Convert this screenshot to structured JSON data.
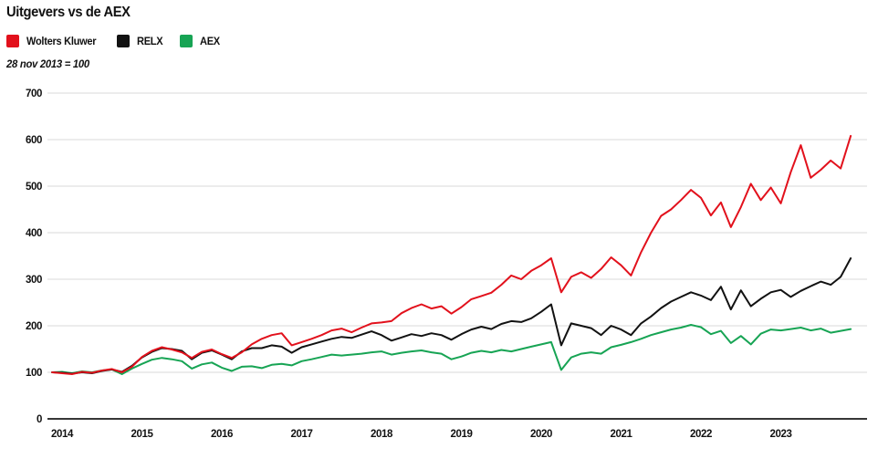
{
  "page": {
    "title": "Uitgevers vs de AEX"
  },
  "chart_data": {
    "type": "line",
    "title": "Uitgevers vs de AEX",
    "subtitle": "28 nov 2013 = 100",
    "x_axis": "year",
    "y_axis": "index (28 nov 2013 = 100)",
    "ylim": [
      0,
      700
    ],
    "xlim": [
      2013.875,
      2024.15
    ],
    "y_ticks": [
      0,
      100,
      200,
      300,
      400,
      500,
      600,
      700
    ],
    "x_tick_labels": [
      "2014",
      "2015",
      "2016",
      "2017",
      "2018",
      "2019",
      "2020",
      "2021",
      "2022",
      "2023"
    ],
    "grid": "horizontal",
    "legend_position": "top-left",
    "colors": {
      "wolters_kluwer": "#e2111c",
      "relx": "#121212",
      "aex": "#17a454",
      "gridline": "#d9d9d9",
      "axis": "#1a1a1a"
    },
    "x": [
      2013.875,
      2014.0,
      2014.125,
      2014.25,
      2014.375,
      2014.5,
      2014.625,
      2014.75,
      2014.875,
      2015.0,
      2015.125,
      2015.25,
      2015.375,
      2015.5,
      2015.625,
      2015.75,
      2015.875,
      2016.0,
      2016.125,
      2016.25,
      2016.375,
      2016.5,
      2016.625,
      2016.75,
      2016.875,
      2017.0,
      2017.125,
      2017.25,
      2017.375,
      2017.5,
      2017.625,
      2017.75,
      2017.875,
      2018.0,
      2018.125,
      2018.25,
      2018.375,
      2018.5,
      2018.625,
      2018.75,
      2018.875,
      2019.0,
      2019.125,
      2019.25,
      2019.375,
      2019.5,
      2019.625,
      2019.75,
      2019.875,
      2020.0,
      2020.125,
      2020.25,
      2020.375,
      2020.5,
      2020.625,
      2020.75,
      2020.875,
      2021.0,
      2021.125,
      2021.25,
      2021.375,
      2021.5,
      2021.625,
      2021.75,
      2021.875,
      2022.0,
      2022.125,
      2022.25,
      2022.375,
      2022.5,
      2022.625,
      2022.75,
      2022.875,
      2023.0,
      2023.125,
      2023.25,
      2023.375,
      2023.5,
      2023.625,
      2023.75,
      2023.875
    ],
    "series": [
      {
        "name": "Wolters Kluwer",
        "color": "#e2111c",
        "values": [
          100,
          98,
          96,
          101,
          99,
          104,
          107,
          100,
          112,
          133,
          146,
          154,
          149,
          143,
          131,
          144,
          149,
          139,
          131,
          143,
          160,
          172,
          180,
          184,
          158,
          165,
          172,
          180,
          190,
          194,
          186,
          196,
          205,
          207,
          210,
          227,
          238,
          246,
          237,
          242,
          226,
          240,
          257,
          264,
          271,
          288,
          308,
          300,
          318,
          330,
          345,
          272,
          305,
          315,
          303,
          322,
          347,
          330,
          308,
          358,
          400,
          436,
          450,
          470,
          492,
          475,
          437,
          465,
          412,
          455,
          505,
          470,
          497,
          463,
          530,
          588,
          518,
          535,
          555,
          538,
          608
        ]
      },
      {
        "name": "RELX",
        "color": "#121212",
        "values": [
          100,
          99,
          97,
          100,
          98,
          103,
          106,
          101,
          114,
          132,
          144,
          152,
          150,
          146,
          128,
          142,
          147,
          138,
          128,
          145,
          152,
          152,
          158,
          155,
          142,
          154,
          160,
          166,
          172,
          176,
          174,
          181,
          188,
          180,
          168,
          175,
          182,
          178,
          184,
          180,
          170,
          182,
          192,
          198,
          193,
          204,
          210,
          208,
          216,
          230,
          246,
          158,
          205,
          200,
          195,
          180,
          200,
          192,
          180,
          205,
          220,
          238,
          252,
          262,
          272,
          265,
          255,
          284,
          235,
          276,
          242,
          258,
          272,
          277,
          262,
          275,
          285,
          295,
          288,
          305,
          345
        ]
      },
      {
        "name": "AEX",
        "color": "#17a454",
        "values": [
          100,
          101,
          98,
          102,
          100,
          104,
          106,
          96,
          108,
          118,
          127,
          131,
          128,
          124,
          108,
          117,
          121,
          110,
          103,
          112,
          113,
          109,
          116,
          118,
          115,
          124,
          128,
          133,
          138,
          136,
          138,
          140,
          143,
          145,
          138,
          142,
          145,
          147,
          143,
          140,
          128,
          134,
          142,
          146,
          143,
          148,
          145,
          150,
          155,
          160,
          165,
          105,
          132,
          140,
          143,
          140,
          154,
          159,
          165,
          172,
          180,
          186,
          192,
          196,
          202,
          197,
          182,
          189,
          163,
          178,
          160,
          183,
          192,
          190,
          193,
          196,
          190,
          194,
          185,
          189,
          193
        ]
      }
    ]
  }
}
